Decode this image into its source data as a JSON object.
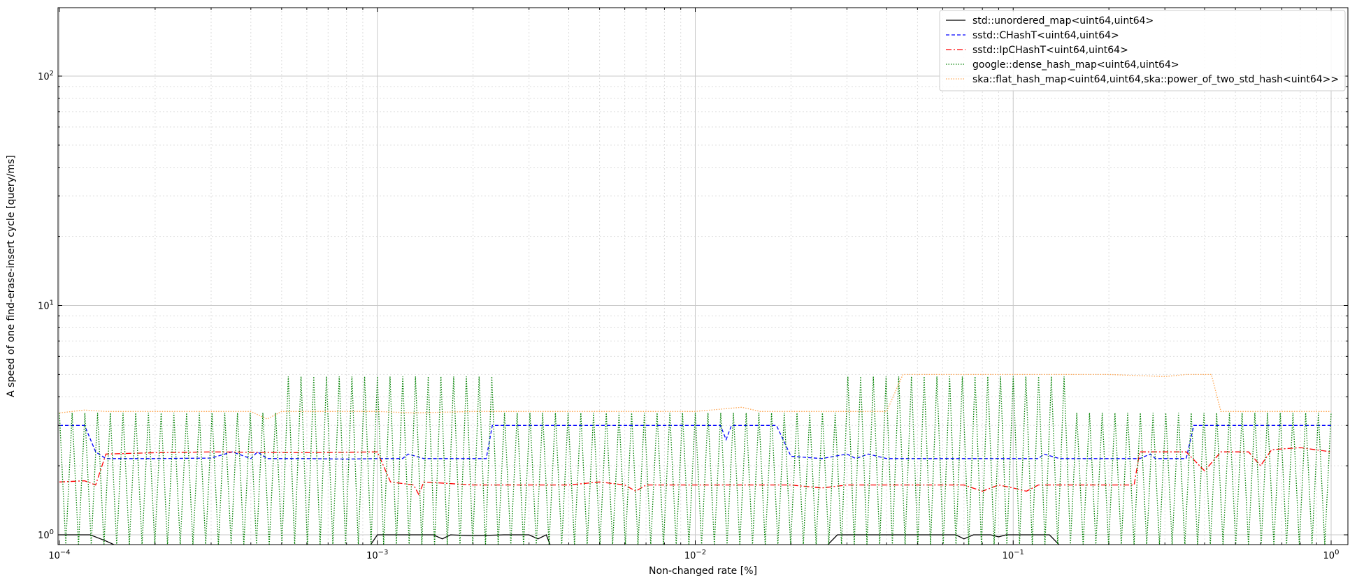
{
  "chart_data": {
    "type": "line",
    "title": "",
    "xlabel": "Non-changed rate [%]",
    "ylabel": "A speed of one find-erase-insert cycle [query/ms]",
    "xscale": "log",
    "yscale": "log",
    "xlim": [
      0.0001,
      1
    ],
    "ylim": [
      1,
      200
    ],
    "x_ticks": [
      {
        "value": 0.0001,
        "base": "10",
        "exp": "−4"
      },
      {
        "value": 0.001,
        "base": "10",
        "exp": "−3"
      },
      {
        "value": 0.01,
        "base": "10",
        "exp": "−2"
      },
      {
        "value": 0.1,
        "base": "10",
        "exp": "−1"
      },
      {
        "value": 1,
        "base": "10",
        "exp": "0"
      }
    ],
    "y_ticks": [
      {
        "value": 1,
        "base": "10",
        "exp": "0"
      },
      {
        "value": 10,
        "base": "10",
        "exp": "1"
      },
      {
        "value": 100,
        "base": "10",
        "exp": "2"
      }
    ],
    "grid": "major solid, minor dotted",
    "legend_position": "top-right",
    "series": [
      {
        "name": "std::unordered_map<uint64,uint64>",
        "color": "#000000",
        "style": "solid",
        "points": [
          [
            0.0001,
            1.0
          ],
          [
            0.000125,
            1.0
          ],
          [
            0.00014,
            0.94
          ],
          [
            0.00015,
            0.9
          ],
          [
            0.00095,
            0.9
          ],
          [
            0.001,
            1.0
          ],
          [
            0.0015,
            1.0
          ],
          [
            0.0016,
            0.96
          ],
          [
            0.0017,
            1.0
          ],
          [
            0.002,
            0.99
          ],
          [
            0.0025,
            1.0
          ],
          [
            0.003,
            1.0
          ],
          [
            0.0032,
            0.96
          ],
          [
            0.0034,
            1.0
          ],
          [
            0.0035,
            0.9
          ],
          [
            0.026,
            0.9
          ],
          [
            0.028,
            1.0
          ],
          [
            0.04,
            1.0
          ],
          [
            0.05,
            1.0
          ],
          [
            0.066,
            1.0
          ],
          [
            0.07,
            0.96
          ],
          [
            0.075,
            1.0
          ],
          [
            0.085,
            1.0
          ],
          [
            0.09,
            0.98
          ],
          [
            0.095,
            1.0
          ],
          [
            0.12,
            1.0
          ],
          [
            0.13,
            1.0
          ],
          [
            0.14,
            0.9
          ],
          [
            1,
            0.9
          ]
        ]
      },
      {
        "name": "sstd::CHashT<uint64,uint64>",
        "color": "#0000ff",
        "style": "dashed",
        "points": [
          [
            0.0001,
            3.0
          ],
          [
            0.00012,
            3.0
          ],
          [
            0.00013,
            2.3
          ],
          [
            0.00014,
            2.15
          ],
          [
            0.0002,
            2.15
          ],
          [
            0.0003,
            2.16
          ],
          [
            0.00035,
            2.3
          ],
          [
            0.0004,
            2.15
          ],
          [
            0.00042,
            2.3
          ],
          [
            0.00045,
            2.15
          ],
          [
            0.0006,
            2.15
          ],
          [
            0.0008,
            2.14
          ],
          [
            0.001,
            2.15
          ],
          [
            0.0012,
            2.15
          ],
          [
            0.00125,
            2.25
          ],
          [
            0.0014,
            2.15
          ],
          [
            0.002,
            2.15
          ],
          [
            0.0022,
            2.15
          ],
          [
            0.0023,
            3.0
          ],
          [
            0.005,
            3.0
          ],
          [
            0.01,
            3.0
          ],
          [
            0.012,
            3.0
          ],
          [
            0.0125,
            2.6
          ],
          [
            0.013,
            3.0
          ],
          [
            0.018,
            3.0
          ],
          [
            0.02,
            2.2
          ],
          [
            0.025,
            2.15
          ],
          [
            0.03,
            2.25
          ],
          [
            0.032,
            2.15
          ],
          [
            0.035,
            2.25
          ],
          [
            0.04,
            2.15
          ],
          [
            0.06,
            2.15
          ],
          [
            0.1,
            2.15
          ],
          [
            0.12,
            2.15
          ],
          [
            0.125,
            2.25
          ],
          [
            0.14,
            2.15
          ],
          [
            0.2,
            2.15
          ],
          [
            0.25,
            2.15
          ],
          [
            0.27,
            2.25
          ],
          [
            0.28,
            2.15
          ],
          [
            0.35,
            2.15
          ],
          [
            0.37,
            3.0
          ],
          [
            1,
            3.0
          ]
        ]
      },
      {
        "name": "sstd::IpCHashT<uint64,uint64>",
        "color": "#ff0000",
        "style": "dashdot",
        "points": [
          [
            0.0001,
            1.7
          ],
          [
            0.00012,
            1.72
          ],
          [
            0.00013,
            1.65
          ],
          [
            0.00014,
            2.25
          ],
          [
            0.0002,
            2.28
          ],
          [
            0.0003,
            2.3
          ],
          [
            0.0006,
            2.28
          ],
          [
            0.001,
            2.3
          ],
          [
            0.0011,
            1.7
          ],
          [
            0.0013,
            1.65
          ],
          [
            0.00135,
            1.5
          ],
          [
            0.0014,
            1.7
          ],
          [
            0.002,
            1.65
          ],
          [
            0.004,
            1.65
          ],
          [
            0.005,
            1.7
          ],
          [
            0.006,
            1.65
          ],
          [
            0.0065,
            1.55
          ],
          [
            0.007,
            1.65
          ],
          [
            0.01,
            1.65
          ],
          [
            0.02,
            1.65
          ],
          [
            0.025,
            1.6
          ],
          [
            0.03,
            1.65
          ],
          [
            0.04,
            1.65
          ],
          [
            0.07,
            1.65
          ],
          [
            0.08,
            1.55
          ],
          [
            0.09,
            1.65
          ],
          [
            0.1,
            1.6
          ],
          [
            0.11,
            1.55
          ],
          [
            0.12,
            1.65
          ],
          [
            0.2,
            1.65
          ],
          [
            0.24,
            1.65
          ],
          [
            0.25,
            2.3
          ],
          [
            0.35,
            2.3
          ],
          [
            0.4,
            1.9
          ],
          [
            0.45,
            2.3
          ],
          [
            0.55,
            2.3
          ],
          [
            0.6,
            2.0
          ],
          [
            0.65,
            2.35
          ],
          [
            0.8,
            2.4
          ],
          [
            1,
            2.3
          ]
        ]
      },
      {
        "name": "google::dense_hash_map<uint64,uint64>",
        "color": "#008000",
        "style": "dotted",
        "oscillating": true,
        "low": 0.9,
        "points": [
          [
            0.0001,
            3.4
          ],
          [
            0.0005,
            3.4
          ],
          [
            0.00052,
            4.9
          ],
          [
            0.0022,
            4.9
          ],
          [
            0.0023,
            3.4
          ],
          [
            0.027,
            3.4
          ],
          [
            0.028,
            4.9
          ],
          [
            0.14,
            4.9
          ],
          [
            0.145,
            3.4
          ],
          [
            1,
            3.4
          ]
        ]
      },
      {
        "name": "ska::flat_hash_map<uint64,uint64,ska::power_of_two_std_hash<uint64>>",
        "color": "#ffa54f",
        "style": "dotted",
        "points": [
          [
            0.0001,
            3.4
          ],
          [
            0.00012,
            3.5
          ],
          [
            0.00014,
            3.45
          ],
          [
            0.0004,
            3.45
          ],
          [
            0.00045,
            3.2
          ],
          [
            0.0005,
            3.45
          ],
          [
            0.001,
            3.45
          ],
          [
            0.0013,
            3.4
          ],
          [
            0.002,
            3.45
          ],
          [
            0.01,
            3.45
          ],
          [
            0.014,
            3.6
          ],
          [
            0.016,
            3.45
          ],
          [
            0.03,
            3.45
          ],
          [
            0.04,
            3.45
          ],
          [
            0.045,
            5.0
          ],
          [
            0.2,
            5.0
          ],
          [
            0.3,
            4.9
          ],
          [
            0.35,
            5.0
          ],
          [
            0.42,
            5.0
          ],
          [
            0.45,
            3.45
          ],
          [
            1,
            3.45
          ]
        ]
      }
    ]
  }
}
